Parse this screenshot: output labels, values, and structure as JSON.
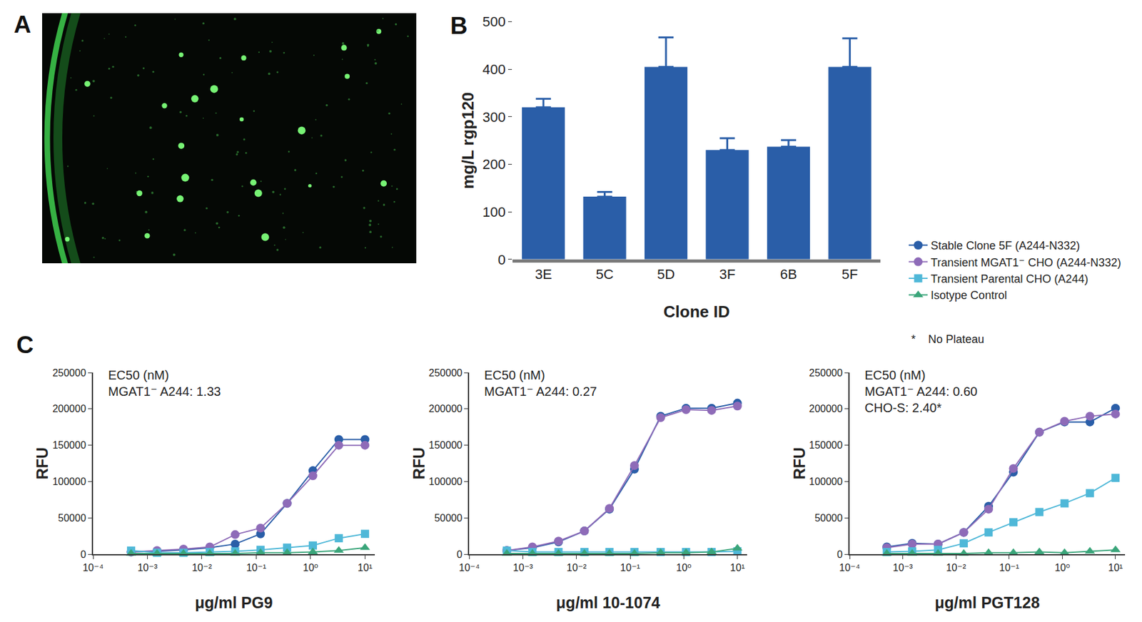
{
  "panel_labels": [
    "A",
    "B",
    "C"
  ],
  "legend_note": {
    "symbol": "*",
    "text": "No Plateau"
  },
  "chart_data": [
    {
      "type": "bar",
      "categories": [
        "3E",
        "5C",
        "5D",
        "3F",
        "6B",
        "5F"
      ],
      "values": [
        320,
        132,
        405,
        230,
        237,
        405
      ],
      "errors": [
        18,
        10,
        62,
        25,
        14,
        60
      ],
      "color": "#2a5ea8",
      "x_label": "Clone ID",
      "y_label": "mg/L rgp120",
      "ylim": [
        0,
        500
      ],
      "yticks": [
        0,
        100,
        200,
        300,
        400,
        500
      ],
      "grid": false
    },
    {
      "type": "line",
      "log": "x",
      "x_label": "μg/ml PG9",
      "y_label": "RFU",
      "annotations": [
        "EC50 (nM)",
        "MGAT1⁻ A244: 1.33"
      ],
      "x": [
        0.0005,
        0.0015,
        0.0046,
        0.014,
        0.041,
        0.12,
        0.37,
        1.1,
        3.3,
        10
      ],
      "xlim": [
        0.0001,
        15
      ],
      "xticks": [
        {
          "value": 0.0001,
          "label": "10⁻⁴"
        },
        {
          "value": 0.001,
          "label": "10⁻³"
        },
        {
          "value": 0.01,
          "label": "10⁻²"
        },
        {
          "value": 0.1,
          "label": "10⁻¹"
        },
        {
          "value": 1,
          "label": "10⁰"
        },
        {
          "value": 10,
          "label": "10¹"
        }
      ],
      "ylim": [
        0,
        250000
      ],
      "yticks": [
        0,
        50000,
        100000,
        150000,
        200000,
        250000
      ],
      "grid": false,
      "series": [
        {
          "name": "Stable Clone 5F (A244-N332)",
          "color": "#2a5ea8",
          "marker": "circle",
          "line_style": "solid",
          "values": [
            3000,
            4000,
            6000,
            9000,
            14000,
            28000,
            70000,
            115000,
            158000,
            158000
          ]
        },
        {
          "name": "Transient MGAT1⁻ CHO (A244-N332)",
          "color": "#8e6bb8",
          "marker": "circle",
          "line_style": "solid",
          "values": [
            3000,
            5000,
            7000,
            10000,
            27000,
            36000,
            70000,
            108000,
            150000,
            150000
          ]
        },
        {
          "name": "Transient Parental CHO (A244)",
          "color": "#4fb8d8",
          "marker": "square",
          "line_style": "solid",
          "values": [
            5000,
            2000,
            2000,
            3000,
            4000,
            6000,
            9000,
            12000,
            22000,
            28000
          ]
        },
        {
          "name": "Isotype Control",
          "color": "#3aa57a",
          "marker": "triangle-up",
          "line_style": "solid",
          "values": [
            1000,
            1000,
            1000,
            1000,
            1000,
            2000,
            2000,
            3000,
            5000,
            9000
          ]
        }
      ]
    },
    {
      "type": "line",
      "log": "x",
      "x_label": "μg/ml 10-1074",
      "y_label": "RFU",
      "annotations": [
        "EC50 (nM)",
        "MGAT1⁻ A244: 0.27"
      ],
      "x": [
        0.0005,
        0.0015,
        0.0046,
        0.014,
        0.041,
        0.12,
        0.37,
        1.1,
        3.3,
        10
      ],
      "xlim": [
        0.0001,
        15
      ],
      "xticks": [
        {
          "value": 0.0001,
          "label": "10⁻⁴"
        },
        {
          "value": 0.001,
          "label": "10⁻³"
        },
        {
          "value": 0.01,
          "label": "10⁻²"
        },
        {
          "value": 0.1,
          "label": "10⁻¹"
        },
        {
          "value": 1,
          "label": "10⁰"
        },
        {
          "value": 10,
          "label": "10¹"
        }
      ],
      "ylim": [
        0,
        250000
      ],
      "yticks": [
        0,
        50000,
        100000,
        150000,
        200000,
        250000
      ],
      "grid": false,
      "series": [
        {
          "name": "Stable Clone 5F (A244-N332)",
          "color": "#2a5ea8",
          "marker": "circle",
          "line_style": "solid",
          "values": [
            5000,
            9000,
            17000,
            32000,
            62000,
            117000,
            190000,
            201000,
            201000,
            208000
          ]
        },
        {
          "name": "Transient MGAT1⁻ CHO (A244-N332)",
          "color": "#8e6bb8",
          "marker": "circle",
          "line_style": "solid",
          "values": [
            5000,
            10000,
            18000,
            32000,
            63000,
            122000,
            188000,
            199000,
            198000,
            204000
          ]
        },
        {
          "name": "Transient Parental CHO (A244)",
          "color": "#4fb8d8",
          "marker": "square",
          "line_style": "solid",
          "values": [
            5000,
            3000,
            3000,
            3000,
            3000,
            3000,
            3000,
            3000,
            3000,
            4000
          ]
        },
        {
          "name": "Isotype Control",
          "color": "#3aa57a",
          "marker": "triangle-up",
          "line_style": "solid",
          "values": [
            1000,
            1000,
            1000,
            1000,
            1000,
            1000,
            2000,
            2000,
            3000,
            8000
          ]
        }
      ]
    },
    {
      "type": "line",
      "log": "x",
      "x_label": "μg/ml PGT128",
      "y_label": "RFU",
      "annotations": [
        "EC50 (nM)",
        "MGAT1⁻ A244: 0.60",
        "CHO-S: 2.40*"
      ],
      "x": [
        0.0005,
        0.0015,
        0.0046,
        0.014,
        0.041,
        0.12,
        0.37,
        1.1,
        3.3,
        10
      ],
      "xlim": [
        0.0001,
        15
      ],
      "xticks": [
        {
          "value": 0.0001,
          "label": "10⁻⁴"
        },
        {
          "value": 0.001,
          "label": "10⁻³"
        },
        {
          "value": 0.01,
          "label": "10⁻²"
        },
        {
          "value": 0.1,
          "label": "10⁻¹"
        },
        {
          "value": 1,
          "label": "10⁰"
        },
        {
          "value": 10,
          "label": "10¹"
        }
      ],
      "ylim": [
        0,
        250000
      ],
      "yticks": [
        0,
        50000,
        100000,
        150000,
        200000,
        250000
      ],
      "grid": false,
      "series": [
        {
          "name": "Stable Clone 5F (A244-N332)",
          "color": "#2a5ea8",
          "marker": "circle",
          "line_style": "solid",
          "values": [
            10000,
            15000,
            14000,
            30000,
            66000,
            113000,
            168000,
            182000,
            182000,
            201000
          ]
        },
        {
          "name": "Transient MGAT1⁻ CHO (A244-N332)",
          "color": "#8e6bb8",
          "marker": "circle",
          "line_style": "solid",
          "values": [
            9000,
            14000,
            14000,
            30000,
            62000,
            118000,
            168000,
            183000,
            190000,
            193000
          ]
        },
        {
          "name": "Transient Parental CHO (A244)",
          "color": "#4fb8d8",
          "marker": "square",
          "line_style": "solid",
          "values": [
            3000,
            4000,
            6000,
            15000,
            30000,
            44000,
            58000,
            70000,
            84000,
            105000
          ]
        },
        {
          "name": "Isotype Control",
          "color": "#3aa57a",
          "marker": "triangle-up",
          "line_style": "solid",
          "values": [
            1000,
            1000,
            1000,
            1000,
            2000,
            2000,
            3000,
            2000,
            4000,
            6000
          ]
        }
      ]
    }
  ]
}
